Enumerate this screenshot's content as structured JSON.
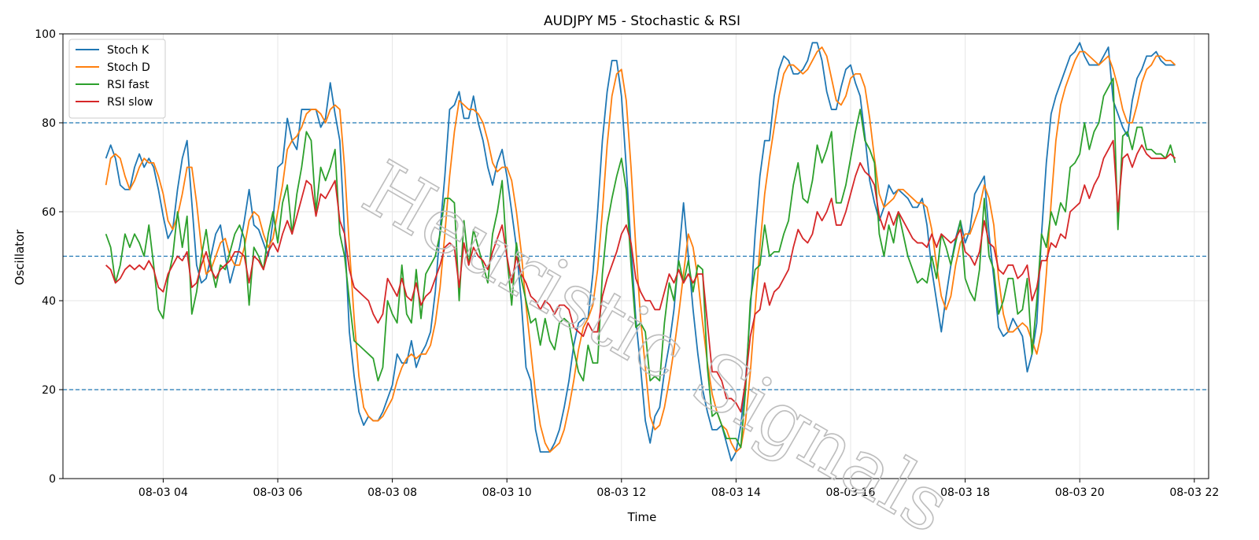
{
  "chart_data": {
    "type": "line",
    "title": "AUDJPY M5 - Stochastic & RSI",
    "xlabel": "Time",
    "ylabel": "Oscillator",
    "ylim": [
      0,
      100
    ],
    "xlim": [
      "2024-08-03 02:15",
      "2024-08-03 22:15"
    ],
    "x_ticks": [
      "08-03 04",
      "08-03 06",
      "08-03 08",
      "08-03 10",
      "08-03 12",
      "08-03 14",
      "08-03 16",
      "08-03 18",
      "08-03 20",
      "08-03 22"
    ],
    "y_ticks": [
      0,
      20,
      40,
      60,
      80,
      100
    ],
    "grid": true,
    "legend_position": "top-left",
    "reference_lines": [
      80,
      50,
      20
    ],
    "watermark": "Heuristic Signals",
    "x_start": "2024-08-03 03:00",
    "x_interval_minutes": 5,
    "series": [
      {
        "name": "Stoch K",
        "color": "#1f77b4",
        "values": [
          72,
          75,
          72,
          66,
          65,
          65,
          70,
          73,
          70,
          72,
          70,
          65,
          59,
          54,
          56,
          65,
          72,
          76,
          62,
          48,
          44,
          45,
          50,
          55,
          57,
          50,
          44,
          48,
          52,
          58,
          65,
          57,
          56,
          53,
          50,
          58,
          70,
          71,
          81,
          76,
          74,
          83,
          83,
          83,
          83,
          79,
          81,
          89,
          82,
          76,
          55,
          33,
          23,
          15,
          12,
          14,
          13,
          13,
          15,
          18,
          21,
          28,
          26,
          26,
          31,
          25,
          28,
          30,
          33,
          42,
          56,
          68,
          83,
          84,
          87,
          81,
          81,
          86,
          80,
          76,
          70,
          66,
          71,
          74,
          68,
          60,
          52,
          40,
          25,
          22,
          11,
          6,
          6,
          6,
          8,
          11,
          16,
          22,
          30,
          35,
          36,
          36,
          46,
          60,
          76,
          87,
          94,
          94,
          86,
          70,
          52,
          36,
          25,
          13,
          8,
          14,
          16,
          24,
          30,
          38,
          50,
          62,
          50,
          38,
          28,
          20,
          15,
          11,
          11,
          12,
          8,
          4,
          6,
          12,
          22,
          38,
          55,
          68,
          76,
          76,
          86,
          92,
          95,
          94,
          91,
          91,
          92,
          94,
          98,
          98,
          94,
          87,
          83,
          83,
          88,
          92,
          93,
          89,
          86,
          77,
          67,
          62,
          58,
          61,
          66,
          64,
          65,
          64,
          63,
          61,
          61,
          63,
          57,
          47,
          40,
          33,
          41,
          48,
          54,
          58,
          53,
          56,
          64,
          66,
          68,
          55,
          45,
          34,
          32,
          33,
          36,
          34,
          32,
          24,
          28,
          35,
          55,
          71,
          82,
          86,
          89,
          92,
          95,
          96,
          98,
          95,
          93,
          93,
          93,
          95,
          97,
          85,
          82,
          79,
          77,
          85,
          90,
          92,
          95,
          95,
          96,
          94,
          93,
          93,
          93
        ]
      },
      {
        "name": "Stoch D",
        "color": "#ff7f0e",
        "values": [
          66,
          72,
          73,
          72,
          68,
          65,
          67,
          70,
          72,
          71,
          71,
          68,
          64,
          58,
          56,
          59,
          64,
          70,
          70,
          62,
          52,
          46,
          47,
          50,
          53,
          54,
          50,
          48,
          48,
          52,
          58,
          60,
          59,
          55,
          52,
          54,
          60,
          66,
          74,
          76,
          77,
          79,
          82,
          83,
          83,
          82,
          80,
          83,
          84,
          83,
          70,
          52,
          36,
          23,
          16,
          14,
          13,
          13,
          14,
          16,
          18,
          22,
          25,
          27,
          28,
          27,
          28,
          28,
          30,
          35,
          43,
          55,
          68,
          78,
          85,
          84,
          83,
          83,
          82,
          80,
          76,
          71,
          69,
          70,
          70,
          67,
          60,
          51,
          39,
          29,
          19,
          12,
          8,
          6,
          7,
          8,
          11,
          16,
          22,
          29,
          34,
          36,
          39,
          47,
          60,
          75,
          86,
          91,
          92,
          85,
          70,
          52,
          36,
          25,
          14,
          11,
          12,
          16,
          22,
          29,
          37,
          46,
          55,
          52,
          45,
          35,
          26,
          19,
          15,
          12,
          11,
          8,
          6,
          7,
          13,
          24,
          38,
          52,
          64,
          72,
          79,
          86,
          91,
          93,
          93,
          92,
          91,
          92,
          94,
          96,
          97,
          95,
          90,
          85,
          84,
          86,
          90,
          91,
          91,
          88,
          81,
          72,
          64,
          61,
          62,
          63,
          65,
          65,
          64,
          63,
          62,
          62,
          61,
          56,
          48,
          41,
          38,
          41,
          48,
          53,
          55,
          55,
          58,
          61,
          66,
          63,
          57,
          45,
          37,
          33,
          33,
          34,
          35,
          34,
          31,
          28,
          33,
          46,
          62,
          76,
          84,
          88,
          91,
          94,
          96,
          96,
          95,
          94,
          93,
          94,
          95,
          92,
          88,
          83,
          80,
          80,
          84,
          89,
          92,
          93,
          95,
          95,
          94,
          94,
          93
        ]
      },
      {
        "name": "RSI fast",
        "color": "#2ca02c",
        "values": [
          55,
          52,
          44,
          48,
          55,
          52,
          55,
          53,
          50,
          57,
          48,
          38,
          36,
          45,
          50,
          60,
          52,
          59,
          37,
          42,
          50,
          56,
          48,
          43,
          48,
          47,
          51,
          55,
          57,
          54,
          39,
          52,
          50,
          47,
          55,
          60,
          53,
          62,
          66,
          55,
          64,
          70,
          78,
          76,
          60,
          70,
          67,
          70,
          74,
          55,
          50,
          40,
          31,
          30,
          29,
          28,
          27,
          22,
          25,
          40,
          37,
          35,
          48,
          37,
          35,
          47,
          36,
          46,
          48,
          50,
          55,
          63,
          63,
          62,
          40,
          58,
          48,
          56,
          52,
          48,
          44,
          55,
          60,
          67,
          50,
          39,
          53,
          45,
          40,
          35,
          36,
          30,
          36,
          31,
          29,
          35,
          36,
          35,
          29,
          24,
          22,
          30,
          26,
          26,
          46,
          57,
          63,
          68,
          72,
          65,
          48,
          34,
          35,
          33,
          22,
          23,
          22,
          35,
          44,
          40,
          49,
          44,
          49,
          42,
          48,
          47,
          25,
          14,
          15,
          12,
          9,
          9,
          9,
          7,
          20,
          40,
          47,
          48,
          57,
          50,
          51,
          51,
          55,
          58,
          66,
          71,
          63,
          62,
          67,
          75,
          71,
          74,
          78,
          62,
          62,
          66,
          72,
          78,
          83,
          76,
          74,
          71,
          55,
          50,
          57,
          53,
          60,
          55,
          50,
          47,
          44,
          45,
          44,
          50,
          45,
          55,
          52,
          48,
          53,
          58,
          45,
          42,
          40,
          47,
          63,
          50,
          47,
          37,
          40,
          45,
          45,
          37,
          38,
          45,
          28,
          40,
          55,
          52,
          60,
          57,
          62,
          60,
          70,
          71,
          73,
          80,
          74,
          78,
          80,
          86,
          88,
          90,
          56,
          77,
          78,
          74,
          79,
          79,
          74,
          74,
          73,
          73,
          72,
          75,
          71
        ]
      },
      {
        "name": "RSI slow",
        "color": "#d62728",
        "values": [
          48,
          47,
          44,
          45,
          47,
          48,
          47,
          48,
          47,
          49,
          47,
          43,
          42,
          46,
          48,
          50,
          49,
          51,
          43,
          44,
          48,
          51,
          47,
          45,
          47,
          48,
          49,
          51,
          51,
          50,
          44,
          50,
          49,
          47,
          51,
          53,
          51,
          55,
          58,
          55,
          59,
          63,
          67,
          66,
          59,
          64,
          63,
          65,
          67,
          58,
          55,
          47,
          43,
          42,
          41,
          40,
          37,
          35,
          37,
          45,
          43,
          41,
          45,
          41,
          40,
          44,
          39,
          41,
          42,
          45,
          48,
          52,
          53,
          52,
          43,
          53,
          48,
          52,
          50,
          49,
          47,
          51,
          54,
          57,
          50,
          44,
          50,
          46,
          44,
          41,
          40,
          38,
          40,
          39,
          37,
          39,
          39,
          38,
          34,
          33,
          32,
          35,
          33,
          33,
          41,
          45,
          48,
          51,
          55,
          57,
          53,
          45,
          42,
          40,
          40,
          38,
          38,
          42,
          46,
          44,
          47,
          44,
          46,
          44,
          46,
          46,
          35,
          24,
          24,
          22,
          18,
          18,
          17,
          15,
          22,
          32,
          37,
          38,
          44,
          39,
          42,
          43,
          45,
          47,
          52,
          56,
          54,
          53,
          55,
          60,
          58,
          60,
          63,
          57,
          57,
          60,
          64,
          68,
          71,
          69,
          68,
          66,
          59,
          56,
          60,
          57,
          60,
          58,
          56,
          54,
          53,
          53,
          52,
          55,
          52,
          55,
          54,
          53,
          54,
          56,
          51,
          50,
          48,
          51,
          58,
          53,
          52,
          47,
          46,
          48,
          48,
          45,
          46,
          48,
          40,
          43,
          49,
          49,
          53,
          52,
          55,
          54,
          60,
          61,
          62,
          66,
          63,
          66,
          68,
          72,
          74,
          76,
          60,
          72,
          73,
          70,
          73,
          75,
          73,
          72,
          72,
          72,
          72,
          73,
          72
        ]
      }
    ]
  }
}
